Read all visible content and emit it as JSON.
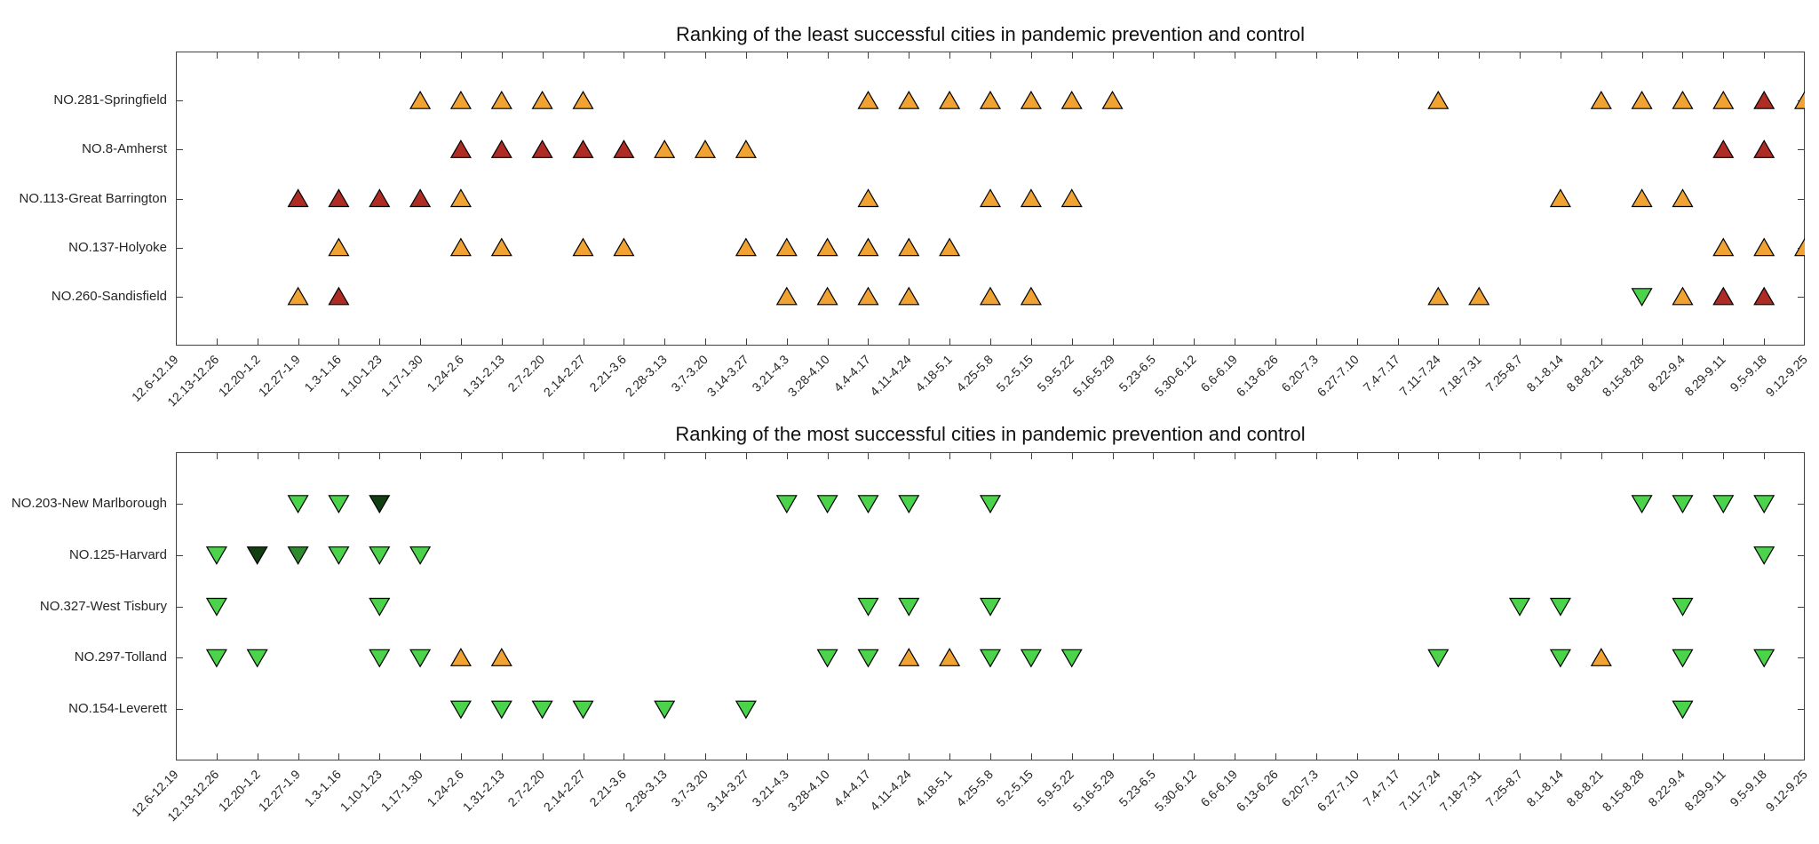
{
  "figure": {
    "background": "#ffffff",
    "axis_color": "#404040",
    "text_color": "#262626",
    "marker_edge_color": "#000000"
  },
  "marker_colors": {
    "orange": "#F0A232",
    "darkred": "#AF2C24",
    "green": "#4CD34C",
    "darkgreen": "#2E8B2E",
    "blackgreen": "#123F12"
  },
  "chart_data": [
    {
      "type": "scatter",
      "title": "Ranking of the least successful cities in pandemic prevention and control",
      "marker_direction_default": "up",
      "legend": "none",
      "grid": false,
      "categories": [
        "12.6-12.19",
        "12.13-12.26",
        "12.20-1.2",
        "12.27-1.9",
        "1.3-1.16",
        "1.10-1.23",
        "1.17-1.30",
        "1.24-2.6",
        "1.31-2.13",
        "2.7-2.20",
        "2.14-2.27",
        "2.21-3.6",
        "2.28-3.13",
        "3.7-3.20",
        "3.14-3.27",
        "3.21-4.3",
        "3.28-4.10",
        "4.4-4.17",
        "4.11-4.24",
        "4.18-5.1",
        "4.25-5.8",
        "5.2-5.15",
        "5.9-5.22",
        "5.16-5.29",
        "5.23-6.5",
        "5.30-6.12",
        "6.6-6.19",
        "6.13-6.26",
        "6.20-7.3",
        "6.27-7.10",
        "7.4-7.17",
        "7.11-7.24",
        "7.18-7.31",
        "7.25-8.7",
        "8.1-8.14",
        "8.8-8.21",
        "8.15-8.28",
        "8.22-9.4",
        "8.29-9.11",
        "9.5-9.18",
        "9.12-9.25"
      ],
      "rows": [
        {
          "label": "NO.281-Springfield",
          "points": [
            {
              "i": 6,
              "c": "orange"
            },
            {
              "i": 7,
              "c": "orange"
            },
            {
              "i": 8,
              "c": "orange"
            },
            {
              "i": 9,
              "c": "orange"
            },
            {
              "i": 10,
              "c": "orange"
            },
            {
              "i": 17,
              "c": "orange"
            },
            {
              "i": 18,
              "c": "orange"
            },
            {
              "i": 19,
              "c": "orange"
            },
            {
              "i": 20,
              "c": "orange"
            },
            {
              "i": 21,
              "c": "orange"
            },
            {
              "i": 22,
              "c": "orange"
            },
            {
              "i": 23,
              "c": "orange"
            },
            {
              "i": 31,
              "c": "orange"
            },
            {
              "i": 35,
              "c": "orange"
            },
            {
              "i": 36,
              "c": "orange"
            },
            {
              "i": 37,
              "c": "orange"
            },
            {
              "i": 38,
              "c": "orange"
            },
            {
              "i": 39,
              "c": "darkred"
            },
            {
              "i": 40,
              "c": "orange"
            }
          ]
        },
        {
          "label": "NO.8-Amherst",
          "points": [
            {
              "i": 7,
              "c": "darkred"
            },
            {
              "i": 8,
              "c": "darkred"
            },
            {
              "i": 9,
              "c": "darkred"
            },
            {
              "i": 10,
              "c": "darkred"
            },
            {
              "i": 11,
              "c": "darkred"
            },
            {
              "i": 12,
              "c": "orange"
            },
            {
              "i": 13,
              "c": "orange"
            },
            {
              "i": 14,
              "c": "orange"
            },
            {
              "i": 38,
              "c": "darkred"
            },
            {
              "i": 39,
              "c": "darkred"
            }
          ]
        },
        {
          "label": "NO.113-Great Barrington",
          "points": [
            {
              "i": 3,
              "c": "darkred"
            },
            {
              "i": 4,
              "c": "darkred"
            },
            {
              "i": 5,
              "c": "darkred"
            },
            {
              "i": 6,
              "c": "darkred"
            },
            {
              "i": 7,
              "c": "orange"
            },
            {
              "i": 17,
              "c": "orange"
            },
            {
              "i": 20,
              "c": "orange"
            },
            {
              "i": 21,
              "c": "orange"
            },
            {
              "i": 22,
              "c": "orange"
            },
            {
              "i": 34,
              "c": "orange"
            },
            {
              "i": 36,
              "c": "orange"
            },
            {
              "i": 37,
              "c": "orange"
            }
          ]
        },
        {
          "label": "NO.137-Holyoke",
          "points": [
            {
              "i": 4,
              "c": "orange"
            },
            {
              "i": 7,
              "c": "orange"
            },
            {
              "i": 8,
              "c": "orange"
            },
            {
              "i": 10,
              "c": "orange"
            },
            {
              "i": 11,
              "c": "orange"
            },
            {
              "i": 14,
              "c": "orange"
            },
            {
              "i": 15,
              "c": "orange"
            },
            {
              "i": 16,
              "c": "orange"
            },
            {
              "i": 17,
              "c": "orange"
            },
            {
              "i": 18,
              "c": "orange"
            },
            {
              "i": 19,
              "c": "orange"
            },
            {
              "i": 38,
              "c": "orange"
            },
            {
              "i": 39,
              "c": "orange"
            },
            {
              "i": 40,
              "c": "orange"
            }
          ]
        },
        {
          "label": "NO.260-Sandisfield",
          "points": [
            {
              "i": 3,
              "c": "orange"
            },
            {
              "i": 4,
              "c": "darkred"
            },
            {
              "i": 15,
              "c": "orange"
            },
            {
              "i": 16,
              "c": "orange"
            },
            {
              "i": 17,
              "c": "orange"
            },
            {
              "i": 18,
              "c": "orange"
            },
            {
              "i": 20,
              "c": "orange"
            },
            {
              "i": 21,
              "c": "orange"
            },
            {
              "i": 31,
              "c": "orange"
            },
            {
              "i": 32,
              "c": "orange"
            },
            {
              "i": 36,
              "c": "green",
              "d": "down"
            },
            {
              "i": 37,
              "c": "orange"
            },
            {
              "i": 38,
              "c": "darkred"
            },
            {
              "i": 39,
              "c": "darkred"
            }
          ]
        }
      ]
    },
    {
      "type": "scatter",
      "title": "Ranking of the most successful cities in pandemic prevention and control",
      "marker_direction_default": "down",
      "legend": "none",
      "grid": false,
      "categories": [
        "12.6-12.19",
        "12.13-12.26",
        "12.20-1.2",
        "12.27-1.9",
        "1.3-1.16",
        "1.10-1.23",
        "1.17-1.30",
        "1.24-2.6",
        "1.31-2.13",
        "2.7-2.20",
        "2.14-2.27",
        "2.21-3.6",
        "2.28-3.13",
        "3.7-3.20",
        "3.14-3.27",
        "3.21-4.3",
        "3.28-4.10",
        "4.4-4.17",
        "4.11-4.24",
        "4.18-5.1",
        "4.25-5.8",
        "5.2-5.15",
        "5.9-5.22",
        "5.16-5.29",
        "5.23-6.5",
        "5.30-6.12",
        "6.6-6.19",
        "6.13-6.26",
        "6.20-7.3",
        "6.27-7.10",
        "7.4-7.17",
        "7.11-7.24",
        "7.18-7.31",
        "7.25-8.7",
        "8.1-8.14",
        "8.8-8.21",
        "8.15-8.28",
        "8.22-9.4",
        "8.29-9.11",
        "9.5-9.18",
        "9.12-9.25"
      ],
      "rows": [
        {
          "label": "NO.203-New Marlborough",
          "points": [
            {
              "i": 3,
              "c": "green"
            },
            {
              "i": 4,
              "c": "green"
            },
            {
              "i": 5,
              "c": "blackgreen"
            },
            {
              "i": 15,
              "c": "green"
            },
            {
              "i": 16,
              "c": "green"
            },
            {
              "i": 17,
              "c": "green"
            },
            {
              "i": 18,
              "c": "green"
            },
            {
              "i": 20,
              "c": "green"
            },
            {
              "i": 36,
              "c": "green"
            },
            {
              "i": 37,
              "c": "green"
            },
            {
              "i": 38,
              "c": "green"
            },
            {
              "i": 39,
              "c": "green"
            }
          ]
        },
        {
          "label": "NO.125-Harvard",
          "points": [
            {
              "i": 1,
              "c": "green"
            },
            {
              "i": 2,
              "c": "blackgreen"
            },
            {
              "i": 3,
              "c": "darkgreen"
            },
            {
              "i": 4,
              "c": "green"
            },
            {
              "i": 5,
              "c": "green"
            },
            {
              "i": 6,
              "c": "green"
            },
            {
              "i": 39,
              "c": "green"
            }
          ]
        },
        {
          "label": "NO.327-West Tisbury",
          "points": [
            {
              "i": 1,
              "c": "green"
            },
            {
              "i": 5,
              "c": "green"
            },
            {
              "i": 17,
              "c": "green"
            },
            {
              "i": 18,
              "c": "green"
            },
            {
              "i": 20,
              "c": "green"
            },
            {
              "i": 33,
              "c": "green"
            },
            {
              "i": 34,
              "c": "green"
            },
            {
              "i": 37,
              "c": "green"
            }
          ]
        },
        {
          "label": "NO.297-Tolland",
          "points": [
            {
              "i": 1,
              "c": "green"
            },
            {
              "i": 2,
              "c": "green"
            },
            {
              "i": 5,
              "c": "green"
            },
            {
              "i": 6,
              "c": "green"
            },
            {
              "i": 7,
              "c": "orange",
              "d": "up"
            },
            {
              "i": 8,
              "c": "orange",
              "d": "up"
            },
            {
              "i": 16,
              "c": "green"
            },
            {
              "i": 17,
              "c": "green"
            },
            {
              "i": 18,
              "c": "orange",
              "d": "up"
            },
            {
              "i": 19,
              "c": "orange",
              "d": "up"
            },
            {
              "i": 20,
              "c": "green"
            },
            {
              "i": 21,
              "c": "green"
            },
            {
              "i": 22,
              "c": "green"
            },
            {
              "i": 31,
              "c": "green"
            },
            {
              "i": 34,
              "c": "green"
            },
            {
              "i": 35,
              "c": "orange",
              "d": "up"
            },
            {
              "i": 37,
              "c": "green"
            },
            {
              "i": 39,
              "c": "green"
            }
          ]
        },
        {
          "label": "NO.154-Leverett",
          "points": [
            {
              "i": 7,
              "c": "green"
            },
            {
              "i": 8,
              "c": "green"
            },
            {
              "i": 9,
              "c": "green"
            },
            {
              "i": 10,
              "c": "green"
            },
            {
              "i": 12,
              "c": "green"
            },
            {
              "i": 14,
              "c": "green"
            },
            {
              "i": 37,
              "c": "green"
            }
          ]
        }
      ]
    }
  ]
}
